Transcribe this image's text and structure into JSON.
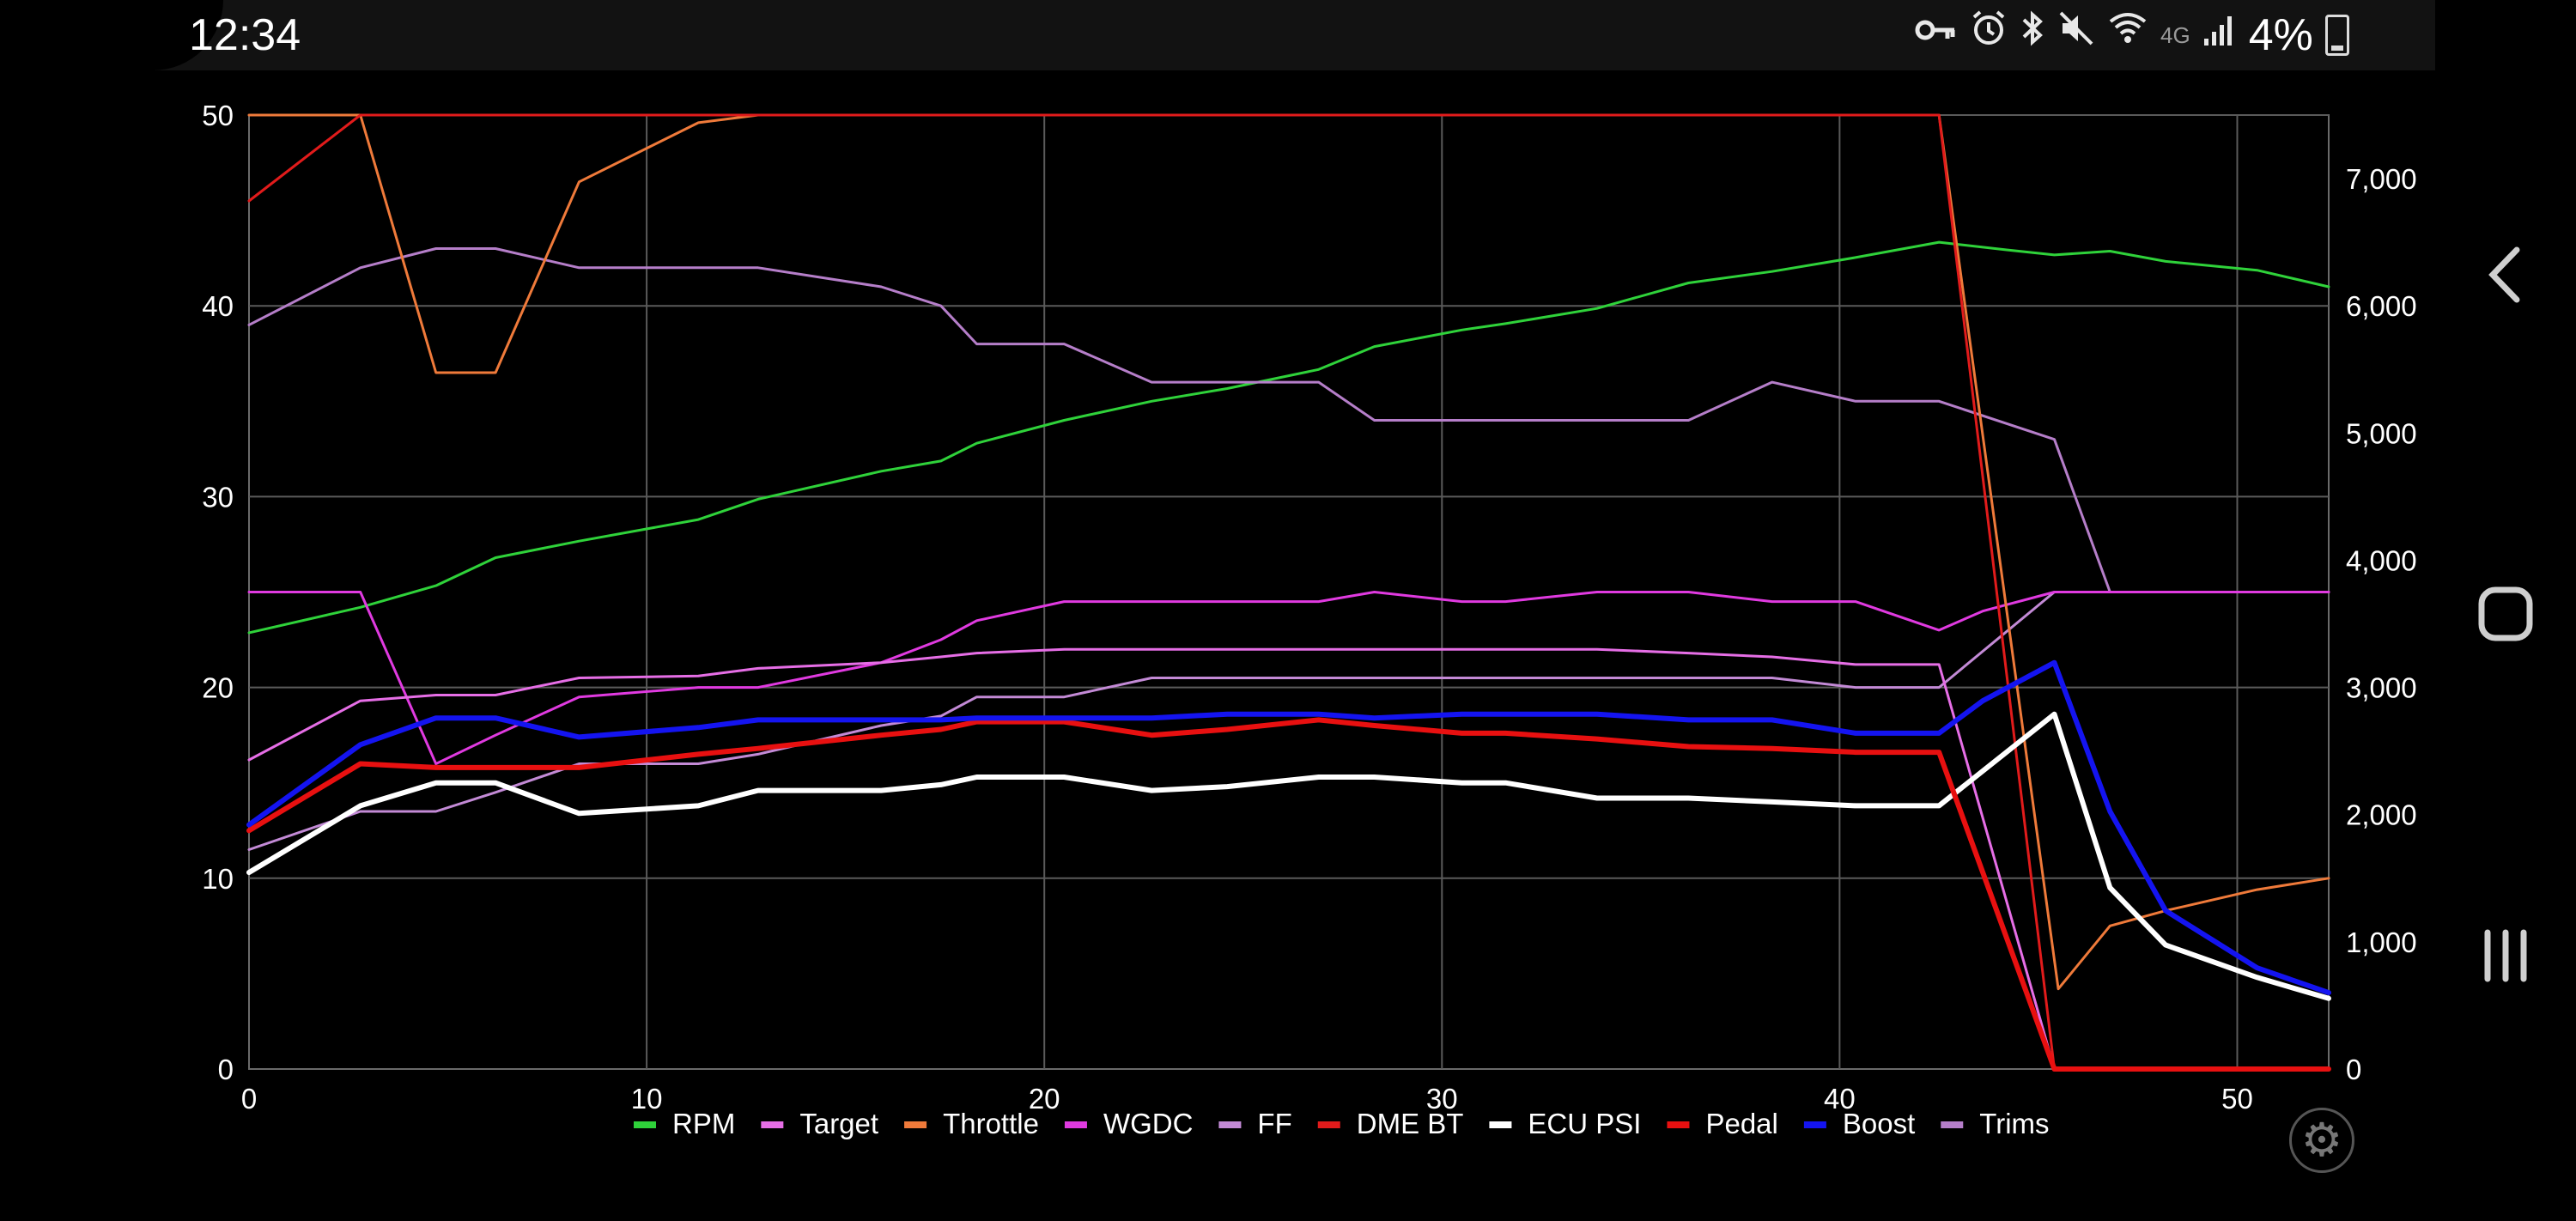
{
  "status_bar": {
    "time": "12:34",
    "network": "4G",
    "battery": "4%",
    "icons": [
      "vpn-key-icon",
      "alarm-icon",
      "bluetooth-icon",
      "mute-icon",
      "wifi-icon",
      "network-4g-icon",
      "signal-icon",
      "battery-charging-icon"
    ]
  },
  "chart_data": {
    "type": "line",
    "x_ticks": [
      "0",
      "10",
      "20",
      "30",
      "40",
      "50"
    ],
    "y_left_ticks": [
      "0",
      "10",
      "20",
      "30",
      "40",
      "50"
    ],
    "y_right_ticks": [
      "0",
      "1,000",
      "2,000",
      "3,000",
      "4,000",
      "5,000",
      "6,000",
      "7,000"
    ],
    "xlim": [
      0,
      52.3
    ],
    "ylim_left": [
      0,
      50
    ],
    "ylim_right": [
      0,
      7500
    ],
    "grid": true,
    "legend_position": "bottom",
    "series": [
      {
        "name": "RPM",
        "color": "#2fd23a",
        "axis": "right",
        "width": 3,
        "points": [
          [
            0,
            3430
          ],
          [
            2.8,
            3630
          ],
          [
            4.7,
            3800
          ],
          [
            6.2,
            4020
          ],
          [
            8.3,
            4150
          ],
          [
            11.3,
            4320
          ],
          [
            12.8,
            4480
          ],
          [
            15.9,
            4700
          ],
          [
            17.4,
            4780
          ],
          [
            18.3,
            4920
          ],
          [
            20.5,
            5100
          ],
          [
            22.7,
            5250
          ],
          [
            24.6,
            5350
          ],
          [
            26.9,
            5500
          ],
          [
            28.3,
            5680
          ],
          [
            30.5,
            5810
          ],
          [
            31.6,
            5860
          ],
          [
            33.9,
            5980
          ],
          [
            36.2,
            6180
          ],
          [
            38.3,
            6270
          ],
          [
            40.4,
            6380
          ],
          [
            42.5,
            6500
          ],
          [
            44.2,
            6440
          ],
          [
            45.4,
            6400
          ],
          [
            46.8,
            6430
          ],
          [
            48.2,
            6350
          ],
          [
            50.5,
            6280
          ],
          [
            52.3,
            6150
          ]
        ]
      },
      {
        "name": "Target",
        "color": "#e66ee6",
        "axis": "left",
        "width": 3,
        "points": [
          [
            0,
            16.2
          ],
          [
            2.8,
            19.3
          ],
          [
            4.7,
            19.6
          ],
          [
            6.2,
            19.6
          ],
          [
            8.3,
            20.5
          ],
          [
            11.3,
            20.6
          ],
          [
            12.8,
            21.0
          ],
          [
            15.9,
            21.3
          ],
          [
            17.4,
            21.6
          ],
          [
            18.3,
            21.8
          ],
          [
            20.5,
            22.0
          ],
          [
            22.7,
            22.0
          ],
          [
            26.9,
            22.0
          ],
          [
            30.5,
            22.0
          ],
          [
            33.9,
            22.0
          ],
          [
            36.2,
            21.8
          ],
          [
            38.3,
            21.6
          ],
          [
            40.4,
            21.2
          ],
          [
            42.5,
            21.2
          ],
          [
            45.4,
            0
          ],
          [
            52.3,
            0
          ]
        ]
      },
      {
        "name": "Throttle",
        "color": "#ef7a3a",
        "axis": "left",
        "width": 3,
        "points": [
          [
            0,
            50
          ],
          [
            2.8,
            50
          ],
          [
            4.7,
            36.5
          ],
          [
            6.2,
            36.5
          ],
          [
            8.3,
            46.5
          ],
          [
            11.3,
            49.6
          ],
          [
            12.8,
            50
          ],
          [
            42.5,
            50
          ],
          [
            45.5,
            4.2
          ],
          [
            46.8,
            7.5
          ],
          [
            48.2,
            8.3
          ],
          [
            50.5,
            9.4
          ],
          [
            52.3,
            10
          ]
        ]
      },
      {
        "name": "WGDC",
        "color": "#e03ae0",
        "axis": "left",
        "width": 3,
        "points": [
          [
            0,
            25
          ],
          [
            2.8,
            25
          ],
          [
            4.7,
            16
          ],
          [
            6.2,
            17.5
          ],
          [
            8.3,
            19.5
          ],
          [
            11.3,
            20
          ],
          [
            12.8,
            20
          ],
          [
            15.9,
            21.3
          ],
          [
            17.4,
            22.5
          ],
          [
            18.3,
            23.5
          ],
          [
            20.5,
            24.5
          ],
          [
            22.7,
            24.5
          ],
          [
            26.9,
            24.5
          ],
          [
            28.3,
            25
          ],
          [
            30.5,
            24.5
          ],
          [
            31.6,
            24.5
          ],
          [
            33.9,
            25
          ],
          [
            36.2,
            25
          ],
          [
            38.3,
            24.5
          ],
          [
            40.4,
            24.5
          ],
          [
            42.5,
            23
          ],
          [
            43.6,
            24
          ],
          [
            45.4,
            25
          ],
          [
            52.3,
            25
          ]
        ]
      },
      {
        "name": "FF",
        "color": "#c38ad6",
        "axis": "left",
        "width": 3,
        "points": [
          [
            0,
            11.5
          ],
          [
            2.8,
            13.5
          ],
          [
            4.7,
            13.5
          ],
          [
            6.2,
            14.5
          ],
          [
            8.3,
            16
          ],
          [
            11.3,
            16
          ],
          [
            12.8,
            16.5
          ],
          [
            15.9,
            18
          ],
          [
            17.4,
            18.5
          ],
          [
            18.3,
            19.5
          ],
          [
            20.5,
            19.5
          ],
          [
            22.7,
            20.5
          ],
          [
            26.9,
            20.5
          ],
          [
            30.5,
            20.5
          ],
          [
            33.9,
            20.5
          ],
          [
            36.2,
            20.5
          ],
          [
            38.3,
            20.5
          ],
          [
            40.4,
            20
          ],
          [
            42.5,
            20
          ],
          [
            45.4,
            25
          ],
          [
            52.3,
            25
          ]
        ]
      },
      {
        "name": "DME BT",
        "color": "#e11b1b",
        "axis": "left",
        "width": 3,
        "points": [
          [
            0,
            45.5
          ],
          [
            2.8,
            50
          ],
          [
            4.7,
            50
          ],
          [
            42.5,
            50
          ],
          [
            45.4,
            0
          ],
          [
            52.3,
            0
          ]
        ]
      },
      {
        "name": "ECU PSI",
        "color": "#ffffff",
        "axis": "left",
        "width": 6,
        "points": [
          [
            0,
            10.3
          ],
          [
            2.8,
            13.8
          ],
          [
            4.7,
            15
          ],
          [
            6.2,
            15
          ],
          [
            8.3,
            13.4
          ],
          [
            11.3,
            13.8
          ],
          [
            12.8,
            14.6
          ],
          [
            15.9,
            14.6
          ],
          [
            17.4,
            14.9
          ],
          [
            18.3,
            15.3
          ],
          [
            20.5,
            15.3
          ],
          [
            22.7,
            14.6
          ],
          [
            24.6,
            14.8
          ],
          [
            26.9,
            15.3
          ],
          [
            28.3,
            15.3
          ],
          [
            30.5,
            15
          ],
          [
            31.6,
            15
          ],
          [
            33.9,
            14.2
          ],
          [
            36.2,
            14.2
          ],
          [
            38.3,
            14
          ],
          [
            40.4,
            13.8
          ],
          [
            42.5,
            13.8
          ],
          [
            45.4,
            18.6
          ],
          [
            46.8,
            9.5
          ],
          [
            48.2,
            6.5
          ],
          [
            50.5,
            4.8
          ],
          [
            52.3,
            3.7
          ]
        ]
      },
      {
        "name": "Pedal",
        "color": "#e81010",
        "axis": "left",
        "width": 6,
        "points": [
          [
            0,
            12.5
          ],
          [
            2.8,
            16
          ],
          [
            4.7,
            15.8
          ],
          [
            6.2,
            15.8
          ],
          [
            8.3,
            15.8
          ],
          [
            11.3,
            16.5
          ],
          [
            12.8,
            16.8
          ],
          [
            15.9,
            17.5
          ],
          [
            17.4,
            17.8
          ],
          [
            18.3,
            18.2
          ],
          [
            20.5,
            18.2
          ],
          [
            22.7,
            17.5
          ],
          [
            24.6,
            17.8
          ],
          [
            26.9,
            18.3
          ],
          [
            28.3,
            18
          ],
          [
            30.5,
            17.6
          ],
          [
            31.6,
            17.6
          ],
          [
            33.9,
            17.3
          ],
          [
            36.2,
            16.9
          ],
          [
            38.3,
            16.8
          ],
          [
            40.4,
            16.6
          ],
          [
            42.5,
            16.6
          ],
          [
            45.4,
            0
          ],
          [
            52.3,
            0
          ]
        ]
      },
      {
        "name": "Boost",
        "color": "#1414f0",
        "axis": "left",
        "width": 6,
        "points": [
          [
            0,
            12.8
          ],
          [
            2.8,
            17
          ],
          [
            4.7,
            18.4
          ],
          [
            6.2,
            18.4
          ],
          [
            8.3,
            17.4
          ],
          [
            11.3,
            17.9
          ],
          [
            12.8,
            18.3
          ],
          [
            15.9,
            18.3
          ],
          [
            17.4,
            18.3
          ],
          [
            18.3,
            18.4
          ],
          [
            20.5,
            18.4
          ],
          [
            22.7,
            18.4
          ],
          [
            24.6,
            18.6
          ],
          [
            26.9,
            18.6
          ],
          [
            28.3,
            18.4
          ],
          [
            30.5,
            18.6
          ],
          [
            33.9,
            18.6
          ],
          [
            36.2,
            18.3
          ],
          [
            38.3,
            18.3
          ],
          [
            40.4,
            17.6
          ],
          [
            42.5,
            17.6
          ],
          [
            43.6,
            19.3
          ],
          [
            45.4,
            21.3
          ],
          [
            46.8,
            13.5
          ],
          [
            48.2,
            8.3
          ],
          [
            50.5,
            5.3
          ],
          [
            52.3,
            4
          ]
        ]
      },
      {
        "name": "Trims",
        "color": "#b57ec9",
        "axis": "left",
        "width": 3,
        "points": [
          [
            0,
            39
          ],
          [
            2.8,
            42
          ],
          [
            4.7,
            43
          ],
          [
            6.2,
            43
          ],
          [
            8.3,
            42
          ],
          [
            11.3,
            42
          ],
          [
            12.8,
            42
          ],
          [
            15.9,
            41
          ],
          [
            17.4,
            40
          ],
          [
            18.3,
            38
          ],
          [
            20.5,
            38
          ],
          [
            22.7,
            36
          ],
          [
            26.9,
            36
          ],
          [
            28.3,
            34
          ],
          [
            30.5,
            34
          ],
          [
            33.9,
            34
          ],
          [
            36.2,
            34
          ],
          [
            38.3,
            36
          ],
          [
            40.4,
            35
          ],
          [
            42.5,
            35
          ],
          [
            45.4,
            33
          ],
          [
            46.8,
            25
          ],
          [
            52.3,
            25
          ]
        ]
      }
    ]
  }
}
